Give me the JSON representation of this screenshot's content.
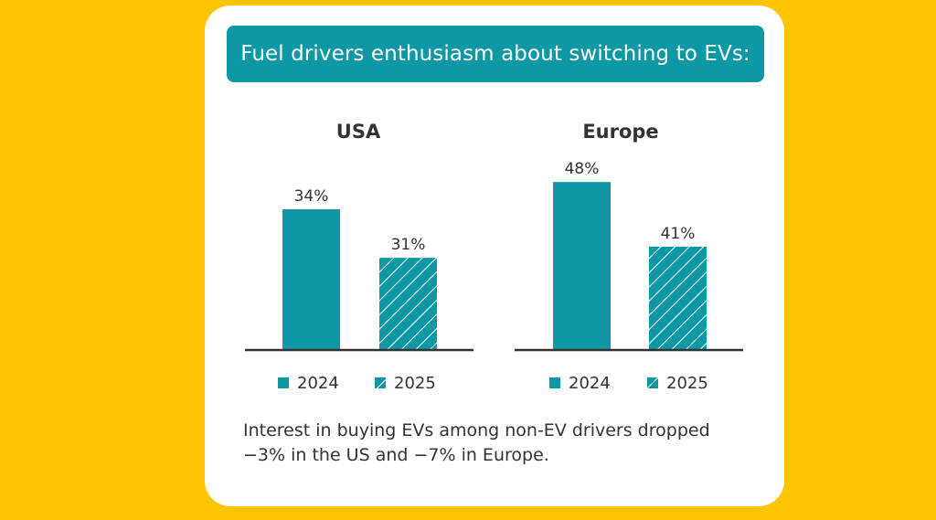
{
  "title": "Fuel drivers enthusiasm about switching to EVs:",
  "colors": {
    "background": "#FDC500",
    "card": "#FFFFFF",
    "accent": "#0E97A4",
    "text": "#333333",
    "axis": "#333333"
  },
  "chart_data": [
    {
      "type": "bar",
      "title": "USA",
      "categories": [
        "2024",
        "2025"
      ],
      "values": [
        34,
        31
      ],
      "value_labels": [
        "34%",
        "31%"
      ],
      "patterns": [
        "solid",
        "hatched"
      ],
      "ylim": [
        25.3,
        36.6
      ],
      "xlabel": "",
      "ylabel": "",
      "grid": false,
      "legend": {
        "placement": "bottom",
        "entries": [
          {
            "label": "2024",
            "pattern": "solid"
          },
          {
            "label": "2025",
            "pattern": "hatched"
          }
        ]
      }
    },
    {
      "type": "bar",
      "title": "Europe",
      "categories": [
        "2024",
        "2025"
      ],
      "values": [
        48,
        41
      ],
      "value_labels": [
        "48%",
        "41%"
      ],
      "patterns": [
        "solid",
        "hatched"
      ],
      "ylim": [
        29.8,
        49.6
      ],
      "xlabel": "",
      "ylabel": "",
      "grid": false,
      "legend": {
        "placement": "bottom",
        "entries": [
          {
            "label": "2024",
            "pattern": "solid"
          },
          {
            "label": "2025",
            "pattern": "hatched"
          }
        ]
      }
    }
  ],
  "footnote": "Interest in buying EVs among non-EV drivers dropped −3% in the US and −7% in Europe."
}
